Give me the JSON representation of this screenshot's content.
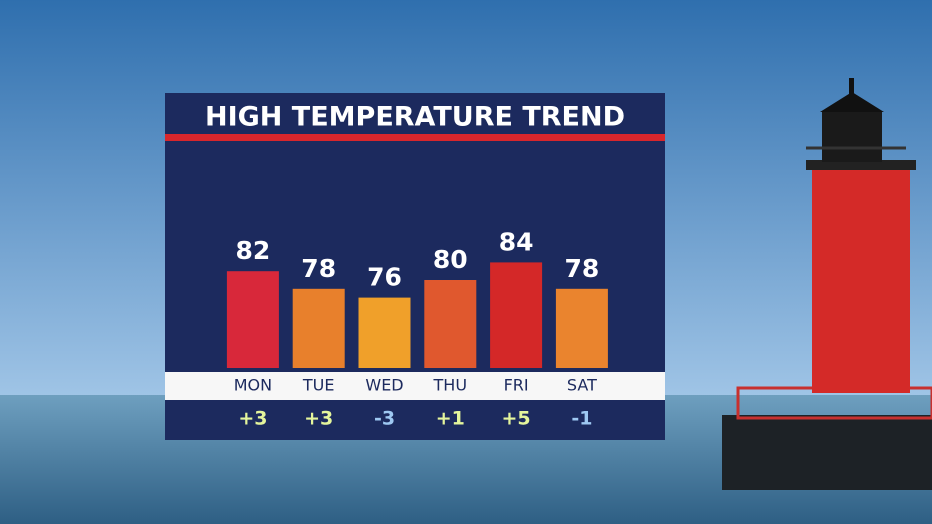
{
  "chart_data": {
    "type": "bar",
    "title": "HIGH TEMPERATURE TREND",
    "categories": [
      "MON",
      "TUE",
      "WED",
      "THU",
      "FRI",
      "SAT"
    ],
    "values": [
      82,
      78,
      76,
      80,
      84,
      78
    ],
    "colors": [
      "#d8283a",
      "#e8802c",
      "#f0a02a",
      "#e0582e",
      "#d42828",
      "#ea842e"
    ],
    "ylim": [
      60,
      90
    ],
    "departures": {
      "values": [
        3,
        3,
        -3,
        1,
        5,
        -1
      ],
      "value_labels": [
        "+3",
        "+3",
        "-3",
        "+1",
        "+5",
        "-1"
      ],
      "colors": {
        "positive": "#e4f59c",
        "negative": "#9ec8f2"
      }
    }
  }
}
